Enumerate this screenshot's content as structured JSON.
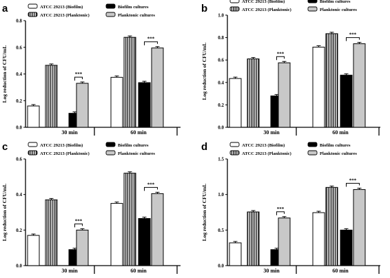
{
  "legend": {
    "atcc_biofilm": "ATCC 29213 (Biofilm)",
    "atcc_planktonic": "ATCC 29213 (Planktonic)",
    "biofilm_cultures": "Biofilm cultures",
    "planktonic_cultures": "Planktonic cultures"
  },
  "chart_data": [
    {
      "panel": "a",
      "type": "bar",
      "ylabel": "Log reduction of CFU/mL",
      "ylim": [
        0,
        0.8
      ],
      "yticks": [
        "0.0",
        "0.2",
        "0.4",
        "0.6",
        "0.8"
      ],
      "categories": [
        "30 min",
        "60 min"
      ],
      "series": [
        {
          "name": "ATCC 29213 (Biofilm)",
          "style": "white",
          "values": [
            0.16,
            0.375
          ]
        },
        {
          "name": "ATCC 29213 (Planktonic)",
          "style": "vertical-stripes",
          "values": [
            0.465,
            0.675
          ]
        },
        {
          "name": "Biofilm cultures",
          "style": "black",
          "values": [
            0.105,
            0.335
          ]
        },
        {
          "name": "Planktonic cultures",
          "style": "gray",
          "values": [
            0.33,
            0.595
          ]
        }
      ],
      "significance": "***"
    },
    {
      "panel": "b",
      "type": "bar",
      "ylabel": "Log reduction of CFU/mL",
      "ylim": [
        0,
        1.0
      ],
      "yticks": [
        "0.0",
        "0.2",
        "0.4",
        "0.6",
        "0.8",
        "1.0"
      ],
      "categories": [
        "30 min",
        "60 min"
      ],
      "series": [
        {
          "name": "ATCC 29213 (Biofilm)",
          "style": "white",
          "values": [
            0.435,
            0.715
          ]
        },
        {
          "name": "ATCC 29213 (Planktonic)",
          "style": "vertical-stripes",
          "values": [
            0.61,
            0.835
          ]
        },
        {
          "name": "Biofilm cultures",
          "style": "black",
          "values": [
            0.28,
            0.465
          ]
        },
        {
          "name": "Planktonic cultures",
          "style": "gray",
          "values": [
            0.575,
            0.745
          ]
        }
      ],
      "significance": "***"
    },
    {
      "panel": "c",
      "type": "bar",
      "ylabel": "Log reduction of CFU/mL",
      "ylim": [
        0,
        0.6
      ],
      "yticks": [
        "0.0",
        "0.2",
        "0.4",
        "0.6"
      ],
      "categories": [
        "30 min",
        "60 min"
      ],
      "series": [
        {
          "name": "ATCC 29213 (Biofilm)",
          "style": "white",
          "values": [
            0.17,
            0.35
          ]
        },
        {
          "name": "ATCC 29213 (Planktonic)",
          "style": "vertical-stripes",
          "values": [
            0.37,
            0.52
          ]
        },
        {
          "name": "Biofilm cultures",
          "style": "black",
          "values": [
            0.09,
            0.265
          ]
        },
        {
          "name": "Planktonic cultures",
          "style": "gray",
          "values": [
            0.2,
            0.405
          ]
        }
      ],
      "significance": "***"
    },
    {
      "panel": "d",
      "type": "bar",
      "ylabel": "Log reduction of CFU/mL",
      "ylim": [
        0,
        1.5
      ],
      "yticks": [
        "0.0",
        "0.5",
        "1.0",
        "1.5"
      ],
      "categories": [
        "30 min",
        "60 min"
      ],
      "series": [
        {
          "name": "ATCC 29213 (Biofilm)",
          "style": "white",
          "values": [
            0.32,
            0.745
          ]
        },
        {
          "name": "ATCC 29213 (Planktonic)",
          "style": "vertical-stripes",
          "values": [
            0.755,
            1.1
          ]
        },
        {
          "name": "Biofilm cultures",
          "style": "black",
          "values": [
            0.225,
            0.5
          ]
        },
        {
          "name": "Planktonic cultures",
          "style": "gray",
          "values": [
            0.67,
            1.07
          ]
        }
      ],
      "significance": "***"
    }
  ]
}
